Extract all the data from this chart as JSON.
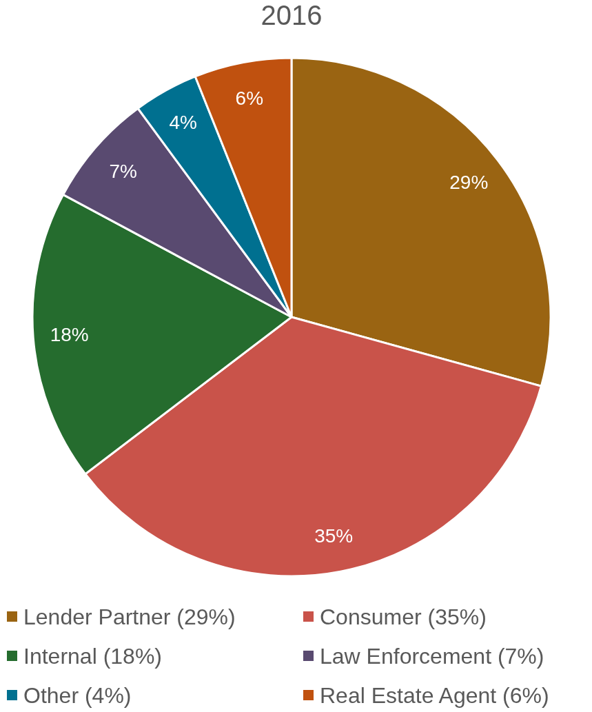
{
  "chart_data": {
    "type": "pie",
    "title": "2016",
    "categories": [
      "Lender Partner (29%)",
      "Consumer (35%)",
      "Internal (18%)",
      "Law Enforcement (7%)",
      "Other (4%)",
      "Real Estate Agent (6%)"
    ],
    "values": [
      29,
      35,
      18,
      7,
      4,
      6
    ],
    "colors": [
      "#9a6412",
      "#c9534a",
      "#256c2e",
      "#594a70",
      "#007090",
      "#c0510f"
    ],
    "value_labels": [
      "29%",
      "35%",
      "18%",
      "7%",
      "4%",
      "6%"
    ],
    "legend": "bottom"
  }
}
